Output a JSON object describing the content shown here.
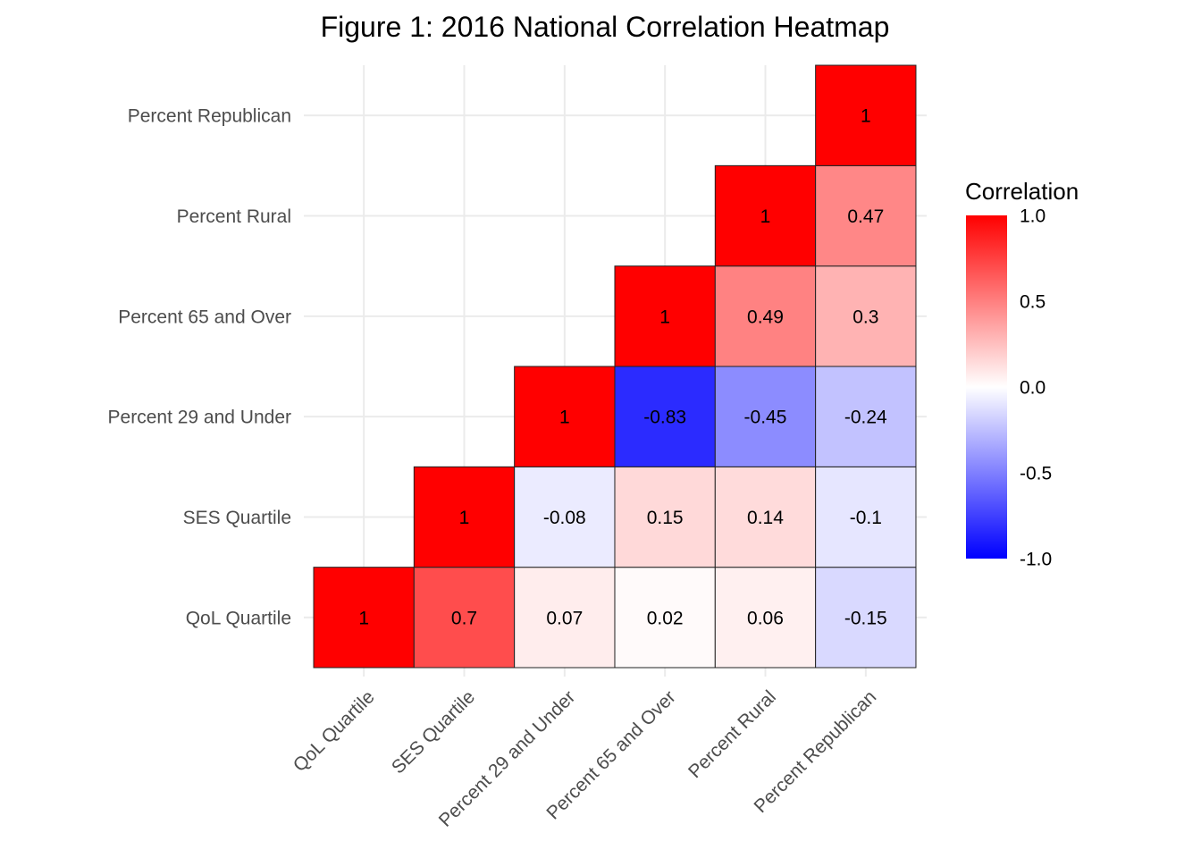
{
  "chart_data": {
    "type": "heatmap",
    "title": "Figure 1: 2016 National Correlation Heatmap",
    "categories": [
      "QoL Quartile",
      "SES Quartile",
      "Percent 29 and Under",
      "Percent 65 and Over",
      "Percent Rural",
      "Percent Republican"
    ],
    "cells": [
      {
        "x": "QoL Quartile",
        "y": "QoL Quartile",
        "value": 1,
        "label": "1"
      },
      {
        "x": "SES Quartile",
        "y": "QoL Quartile",
        "value": 0.7,
        "label": "0.7"
      },
      {
        "x": "Percent 29 and Under",
        "y": "QoL Quartile",
        "value": 0.07,
        "label": "0.07"
      },
      {
        "x": "Percent 65 and Over",
        "y": "QoL Quartile",
        "value": 0.02,
        "label": "0.02"
      },
      {
        "x": "Percent Rural",
        "y": "QoL Quartile",
        "value": 0.06,
        "label": "0.06"
      },
      {
        "x": "Percent Republican",
        "y": "QoL Quartile",
        "value": -0.15,
        "label": "-0.15"
      },
      {
        "x": "SES Quartile",
        "y": "SES Quartile",
        "value": 1,
        "label": "1"
      },
      {
        "x": "Percent 29 and Under",
        "y": "SES Quartile",
        "value": -0.08,
        "label": "-0.08"
      },
      {
        "x": "Percent 65 and Over",
        "y": "SES Quartile",
        "value": 0.15,
        "label": "0.15"
      },
      {
        "x": "Percent Rural",
        "y": "SES Quartile",
        "value": 0.14,
        "label": "0.14"
      },
      {
        "x": "Percent Republican",
        "y": "SES Quartile",
        "value": -0.1,
        "label": "-0.1"
      },
      {
        "x": "Percent 29 and Under",
        "y": "Percent 29 and Under",
        "value": 1,
        "label": "1"
      },
      {
        "x": "Percent 65 and Over",
        "y": "Percent 29 and Under",
        "value": -0.83,
        "label": "-0.83"
      },
      {
        "x": "Percent Rural",
        "y": "Percent 29 and Under",
        "value": -0.45,
        "label": "-0.45"
      },
      {
        "x": "Percent Republican",
        "y": "Percent 29 and Under",
        "value": -0.24,
        "label": "-0.24"
      },
      {
        "x": "Percent 65 and Over",
        "y": "Percent 65 and Over",
        "value": 1,
        "label": "1"
      },
      {
        "x": "Percent Rural",
        "y": "Percent 65 and Over",
        "value": 0.49,
        "label": "0.49"
      },
      {
        "x": "Percent Republican",
        "y": "Percent 65 and Over",
        "value": 0.3,
        "label": "0.3"
      },
      {
        "x": "Percent Rural",
        "y": "Percent Rural",
        "value": 1,
        "label": "1"
      },
      {
        "x": "Percent Republican",
        "y": "Percent Rural",
        "value": 0.47,
        "label": "0.47"
      },
      {
        "x": "Percent Republican",
        "y": "Percent Republican",
        "value": 1,
        "label": "1"
      }
    ],
    "legend": {
      "title": "Correlation",
      "range": [
        -1,
        1
      ],
      "ticks": [
        {
          "value": 1,
          "label": "1.0"
        },
        {
          "value": 0.5,
          "label": "0.5"
        },
        {
          "value": 0,
          "label": "0.0"
        },
        {
          "value": -0.5,
          "label": "-0.5"
        },
        {
          "value": -1,
          "label": "-1.0"
        }
      ],
      "colors": {
        "low": "#0000ff",
        "mid": "#ffffff",
        "high": "#ff0000"
      },
      "placement": "right"
    },
    "grid": true
  }
}
